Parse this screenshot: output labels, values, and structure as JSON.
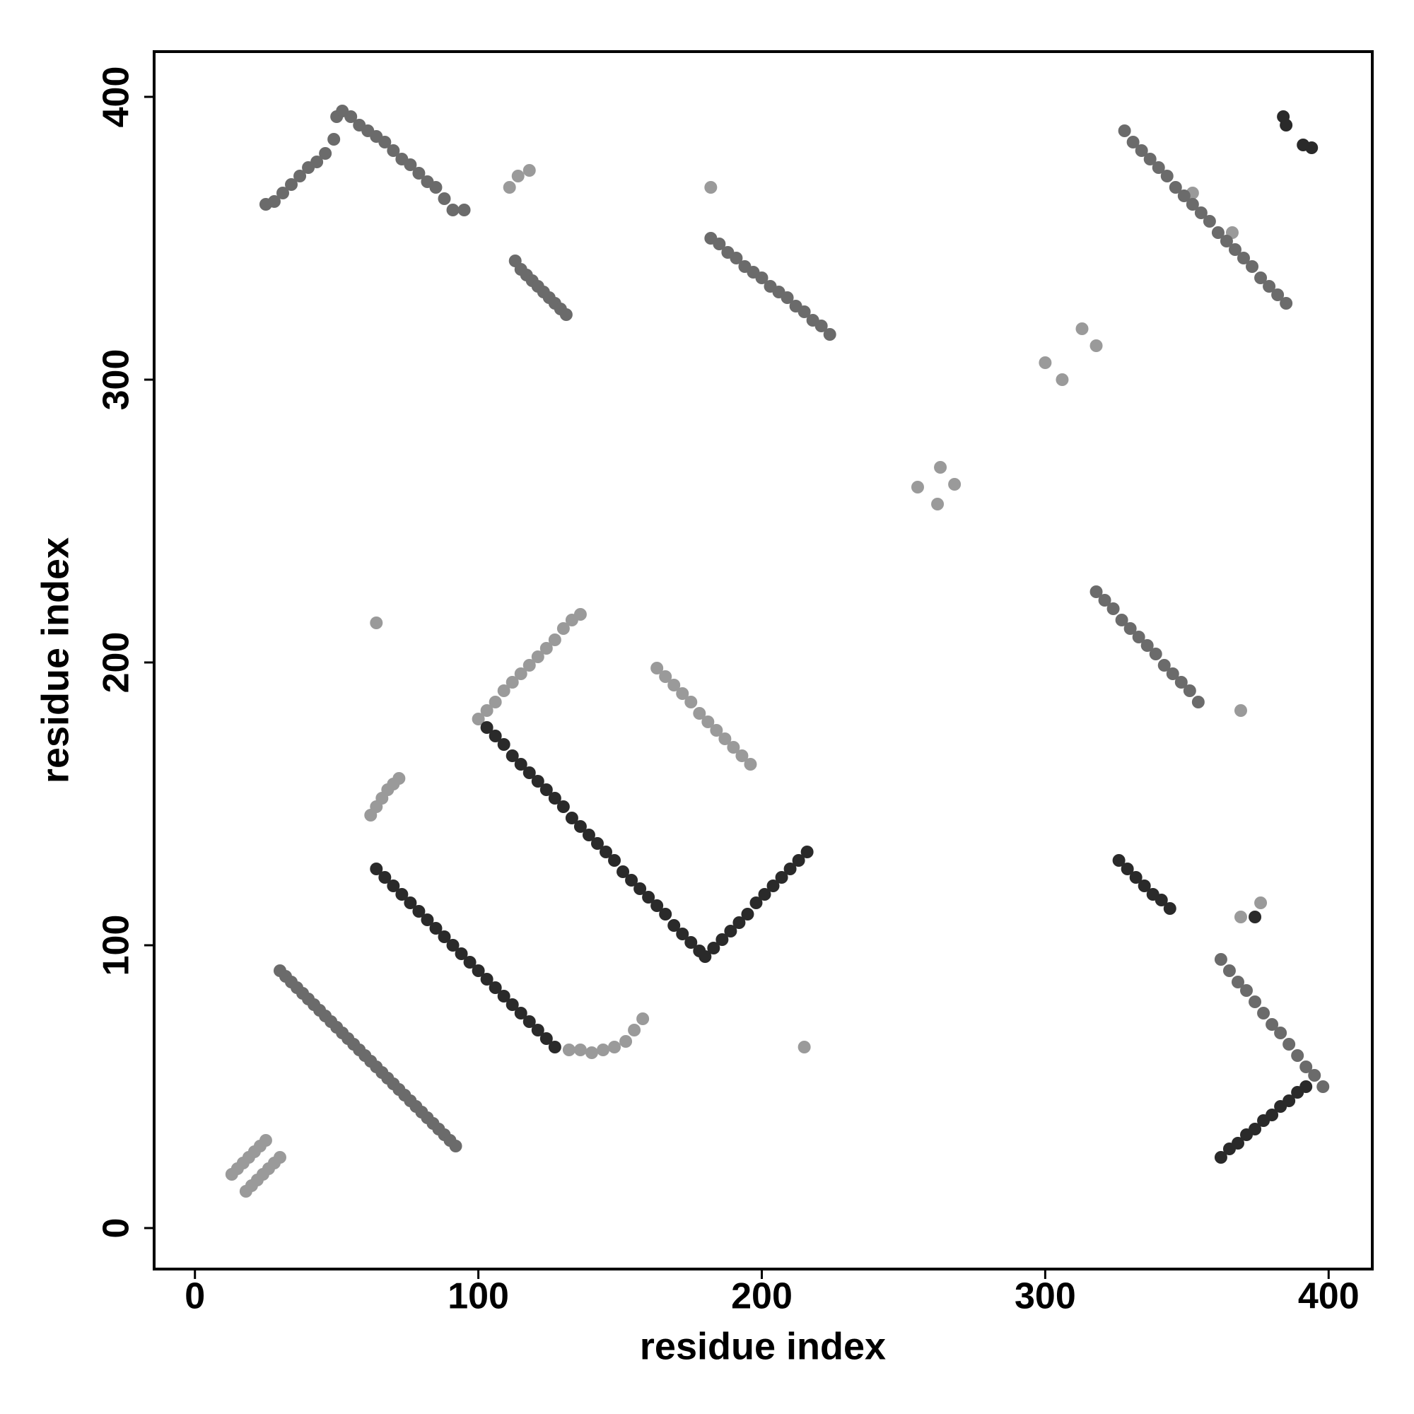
{
  "chart_data": {
    "type": "scatter",
    "xlabel": "residue index",
    "ylabel": "residue index",
    "xlim": [
      -14.4,
      415.4
    ],
    "ylim": [
      -14.5,
      416
    ],
    "xticks": [
      0,
      100,
      200,
      300,
      400
    ],
    "yticks": [
      0,
      100,
      200,
      300,
      400
    ],
    "grid": false,
    "series": [
      {
        "color": "#9a9a9a",
        "x": [
          13,
          15,
          17,
          19,
          21,
          23,
          25,
          18,
          20,
          22,
          24,
          26,
          28,
          30,
          62,
          64,
          66,
          68,
          70,
          72,
          132,
          136,
          140,
          144,
          148,
          152,
          155,
          158,
          111,
          114,
          118,
          100,
          103,
          106,
          109,
          112,
          115,
          118,
          121,
          124,
          127,
          130,
          133,
          136,
          163,
          166,
          169,
          172,
          175,
          178,
          181,
          184,
          187,
          190,
          193,
          196,
          64,
          215,
          182,
          255,
          262,
          263,
          268,
          300,
          306,
          313,
          318,
          369,
          352,
          366,
          369,
          376
        ],
        "y": [
          19,
          21,
          23,
          25,
          27,
          29,
          31,
          13,
          15,
          17,
          19,
          21,
          23,
          25,
          146,
          149,
          152,
          155,
          157,
          159,
          63,
          63,
          62,
          63,
          64,
          66,
          70,
          74,
          368,
          372,
          374,
          180,
          183,
          186,
          190,
          193,
          196,
          199,
          202,
          205,
          208,
          212,
          215,
          217,
          198,
          195,
          192,
          189,
          186,
          182,
          179,
          176,
          173,
          170,
          167,
          164,
          214,
          64,
          368,
          262,
          256,
          269,
          263,
          306,
          300,
          318,
          312,
          183,
          366,
          352,
          110,
          115
        ]
      },
      {
        "color": "#6b6b6b",
        "x": [
          30,
          32,
          34,
          36,
          38,
          40,
          42,
          44,
          46,
          48,
          50,
          52,
          54,
          56,
          58,
          60,
          62,
          64,
          66,
          68,
          70,
          72,
          74,
          76,
          78,
          80,
          82,
          84,
          86,
          88,
          90,
          92,
          25,
          28,
          31,
          34,
          37,
          40,
          43,
          46,
          49,
          50,
          52,
          55,
          58,
          61,
          64,
          67,
          70,
          73,
          76,
          79,
          82,
          85,
          88,
          91,
          95,
          113,
          115,
          117,
          119,
          121,
          123,
          125,
          127,
          129,
          131,
          182,
          185,
          188,
          191,
          194,
          197,
          200,
          203,
          206,
          209,
          212,
          215,
          218,
          221,
          224,
          318,
          321,
          324,
          327,
          330,
          333,
          336,
          339,
          342,
          345,
          348,
          351,
          354,
          362,
          365,
          368,
          371,
          374,
          377,
          380,
          383,
          386,
          389,
          392,
          395,
          398,
          328,
          331,
          334,
          337,
          340,
          343,
          346,
          349,
          352,
          355,
          358,
          361,
          364,
          367,
          370,
          373,
          376,
          379,
          382,
          385
        ],
        "y": [
          91,
          89,
          87,
          85,
          83,
          81,
          79,
          77,
          75,
          73,
          71,
          69,
          67,
          65,
          63,
          61,
          59,
          57,
          55,
          53,
          51,
          49,
          47,
          45,
          43,
          41,
          39,
          37,
          35,
          33,
          31,
          29,
          362,
          363,
          366,
          369,
          372,
          375,
          377,
          380,
          385,
          393,
          395,
          393,
          390,
          388,
          386,
          384,
          381,
          378,
          376,
          373,
          370,
          368,
          364,
          360,
          360,
          342,
          339,
          337,
          335,
          333,
          331,
          329,
          327,
          325,
          323,
          350,
          348,
          345,
          343,
          340,
          338,
          336,
          333,
          331,
          329,
          326,
          324,
          321,
          319,
          316,
          225,
          222,
          219,
          215,
          212,
          209,
          206,
          203,
          199,
          196,
          193,
          190,
          186,
          95,
          91,
          87,
          84,
          80,
          76,
          72,
          69,
          65,
          61,
          57,
          54,
          50,
          388,
          384,
          381,
          378,
          375,
          372,
          368,
          365,
          362,
          359,
          356,
          352,
          349,
          346,
          343,
          340,
          336,
          333,
          330,
          327
        ]
      },
      {
        "color": "#2a2a2a",
        "x": [
          64,
          67,
          70,
          73,
          76,
          79,
          82,
          85,
          88,
          91,
          94,
          97,
          100,
          103,
          106,
          109,
          112,
          115,
          118,
          121,
          124,
          127,
          103,
          106,
          109,
          112,
          115,
          118,
          121,
          124,
          127,
          130,
          133,
          136,
          139,
          142,
          145,
          148,
          151,
          154,
          157,
          160,
          163,
          166,
          169,
          172,
          175,
          178,
          180,
          183,
          186,
          189,
          192,
          195,
          198,
          201,
          204,
          207,
          210,
          213,
          216,
          326,
          329,
          332,
          335,
          338,
          341,
          344,
          362,
          365,
          368,
          371,
          374,
          377,
          380,
          383,
          386,
          389,
          392,
          384,
          385,
          391,
          394,
          374
        ],
        "y": [
          127,
          124,
          121,
          118,
          115,
          112,
          109,
          106,
          103,
          100,
          97,
          94,
          91,
          88,
          85,
          82,
          79,
          76,
          73,
          70,
          67,
          64,
          177,
          174,
          171,
          167,
          164,
          161,
          158,
          155,
          152,
          149,
          145,
          142,
          139,
          136,
          133,
          130,
          126,
          123,
          120,
          117,
          114,
          111,
          107,
          104,
          101,
          98,
          96,
          99,
          102,
          105,
          108,
          111,
          115,
          118,
          121,
          124,
          127,
          130,
          133,
          130,
          127,
          124,
          121,
          118,
          116,
          113,
          25,
          28,
          30,
          33,
          35,
          38,
          40,
          43,
          45,
          48,
          50,
          393,
          390,
          383,
          382,
          110
        ]
      }
    ]
  }
}
